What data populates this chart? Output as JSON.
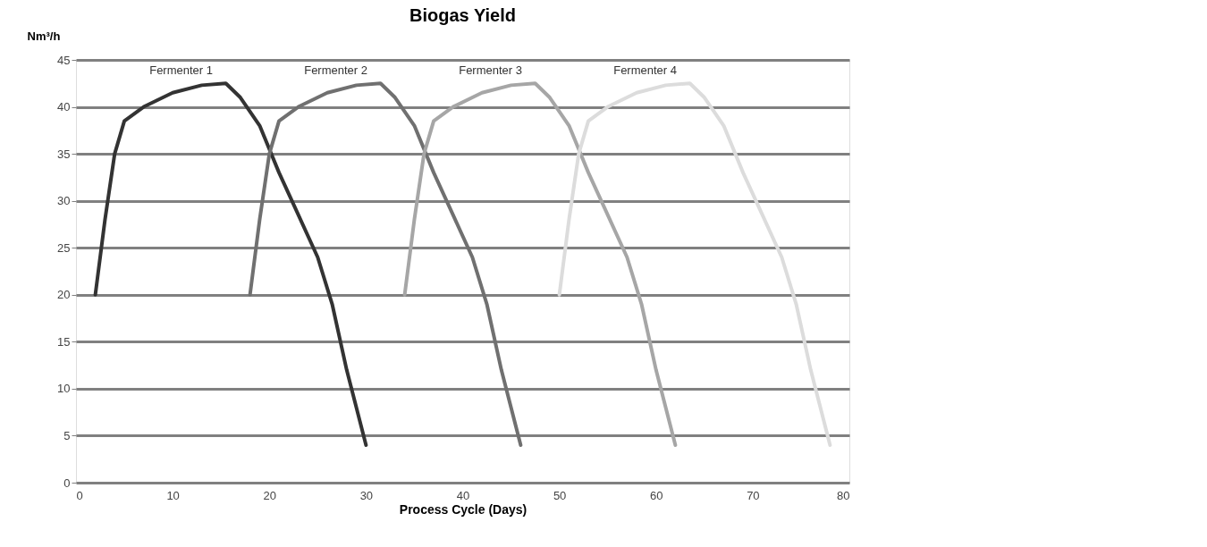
{
  "chart_data": {
    "type": "line",
    "title": "Biogas Yield",
    "xlabel": "Process Cycle (Days)",
    "ylabel": "Nm³/h",
    "xlim": [
      0,
      80
    ],
    "xticks": [
      0,
      10,
      20,
      30,
      40,
      50,
      60,
      70,
      80
    ],
    "ylim": [
      0,
      45
    ],
    "yticks": [
      0,
      5,
      10,
      15,
      20,
      25,
      30,
      35,
      40,
      45
    ],
    "grid": "y",
    "marker": "none",
    "line_style": "solid",
    "series": [
      {
        "name": "Fermenter 1",
        "color": "#333333",
        "x": [
          2,
          3,
          4,
          5,
          7,
          10,
          13,
          15.5,
          17,
          19,
          21,
          23,
          25,
          26.5,
          28,
          30
        ],
        "values": [
          20,
          28,
          35,
          38.5,
          40,
          41.5,
          42.3,
          42.5,
          41,
          38,
          33,
          28.5,
          24,
          19,
          12,
          4
        ]
      },
      {
        "name": "Fermenter 2",
        "color": "#707070",
        "x": [
          18,
          19,
          20,
          21,
          23,
          26,
          29,
          31.5,
          33,
          35,
          37,
          39,
          41,
          42.5,
          44,
          46
        ],
        "values": [
          20,
          28,
          35,
          38.5,
          40,
          41.5,
          42.3,
          42.5,
          41,
          38,
          33,
          28.5,
          24,
          19,
          12,
          4
        ]
      },
      {
        "name": "Fermenter 3",
        "color": "#a6a6a6",
        "x": [
          34,
          35,
          36,
          37,
          39,
          42,
          45,
          47.5,
          49,
          51,
          53,
          55,
          57,
          58.5,
          60,
          62
        ],
        "values": [
          20,
          28,
          35,
          38.5,
          40,
          41.5,
          42.3,
          42.5,
          41,
          38,
          33,
          28.5,
          24,
          19,
          12,
          4
        ]
      },
      {
        "name": "Fermenter 4",
        "color": "#dcdcdc",
        "x": [
          50,
          51,
          52,
          53,
          55,
          58,
          61,
          63.5,
          65,
          67,
          69,
          71,
          73,
          74.5,
          76,
          78
        ],
        "values": [
          20,
          28,
          35,
          38.5,
          40,
          41.5,
          42.3,
          42.5,
          41,
          38,
          33,
          28.5,
          24,
          19,
          12,
          4
        ]
      }
    ]
  }
}
